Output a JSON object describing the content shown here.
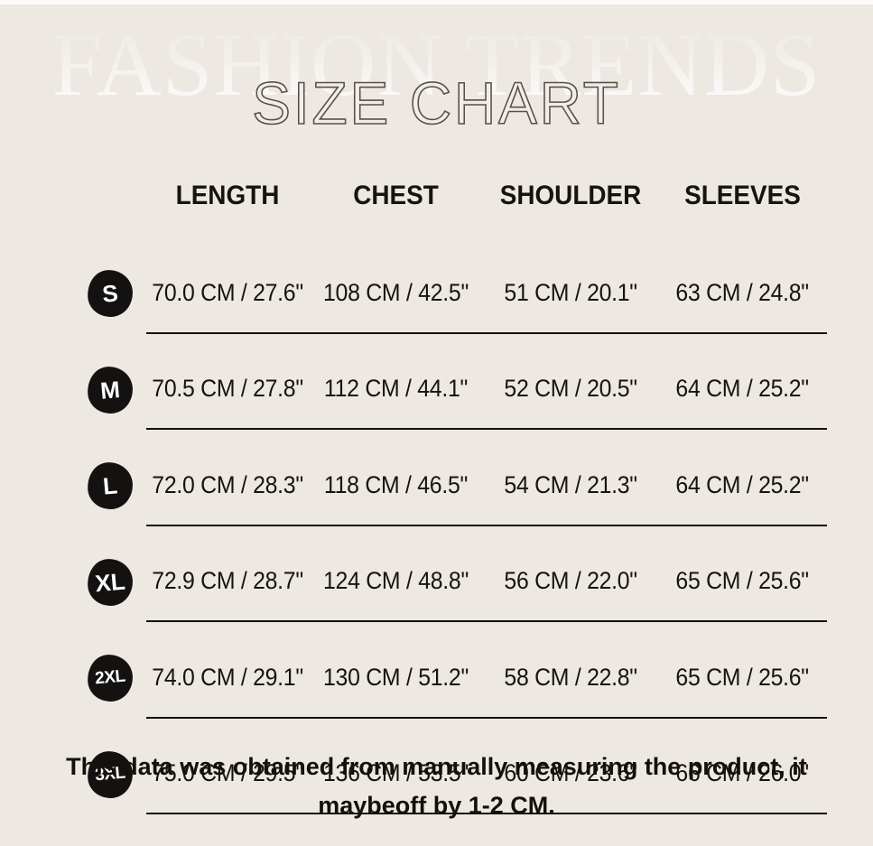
{
  "header": {
    "watermark": "FASHION TRENDS",
    "title": "SIZE CHART"
  },
  "chart_data": {
    "type": "table",
    "title": "SIZE CHART",
    "columns": [
      "LENGTH",
      "CHEST",
      "SHOULDER",
      "SLEEVES"
    ],
    "size_labels": [
      "S",
      "M",
      "L",
      "XL",
      "2XL",
      "3XL"
    ],
    "rows": [
      {
        "size": "S",
        "cells": [
          "70.0 CM / 27.6\"",
          "108 CM / 42.5\"",
          "51 CM / 20.1\"",
          "63 CM / 24.8\""
        ]
      },
      {
        "size": "M",
        "cells": [
          "70.5 CM / 27.8\"",
          "112 CM / 44.1\"",
          "52 CM / 20.5\"",
          "64 CM / 25.2\""
        ]
      },
      {
        "size": "L",
        "cells": [
          "72.0 CM / 28.3\"",
          "118 CM / 46.5\"",
          "54 CM / 21.3\"",
          "64 CM / 25.2\""
        ]
      },
      {
        "size": "XL",
        "cells": [
          "72.9 CM / 28.7\"",
          "124 CM / 48.8\"",
          "56 CM / 22.0\"",
          "65 CM / 25.6\""
        ]
      },
      {
        "size": "2XL",
        "cells": [
          "74.0 CM / 29.1\"",
          "130 CM / 51.2\"",
          "58 CM / 22.8\"",
          "65 CM / 25.6\""
        ]
      },
      {
        "size": "3XL",
        "cells": [
          "75.0 CM / 29.5\"",
          "136 CM / 53.5\"",
          "60 CM / 23.6\"",
          "66 CM / 26.0\""
        ]
      }
    ],
    "series": [
      {
        "name": "LENGTH",
        "cm": [
          70.0,
          70.5,
          72.0,
          72.9,
          74.0,
          75.0
        ],
        "inches": [
          27.6,
          27.8,
          28.3,
          28.7,
          29.1,
          29.5
        ]
      },
      {
        "name": "CHEST",
        "cm": [
          108,
          112,
          118,
          124,
          130,
          136
        ],
        "inches": [
          42.5,
          44.1,
          46.5,
          48.8,
          51.2,
          53.5
        ]
      },
      {
        "name": "SHOULDER",
        "cm": [
          51,
          52,
          54,
          56,
          58,
          60
        ],
        "inches": [
          20.1,
          20.5,
          21.3,
          22.0,
          22.8,
          23.6
        ]
      },
      {
        "name": "SLEEVES",
        "cm": [
          63,
          64,
          64,
          65,
          65,
          66
        ],
        "inches": [
          24.8,
          25.2,
          25.2,
          25.6,
          25.6,
          26.0
        ]
      }
    ],
    "note": "This data was obtained from manually measuring the product, it maybeoff by 1-2 CM."
  },
  "footer": {
    "line1": "This data was obtained from manually measuring the product, it",
    "line2": "maybeoff by 1-2 CM."
  },
  "colors": {
    "background": "#EDE8E2",
    "text": "#161310",
    "badge_fill": "#141210",
    "badge_text": "#FFFFFF",
    "divider": "#141210",
    "title_outline": "#57504A"
  }
}
